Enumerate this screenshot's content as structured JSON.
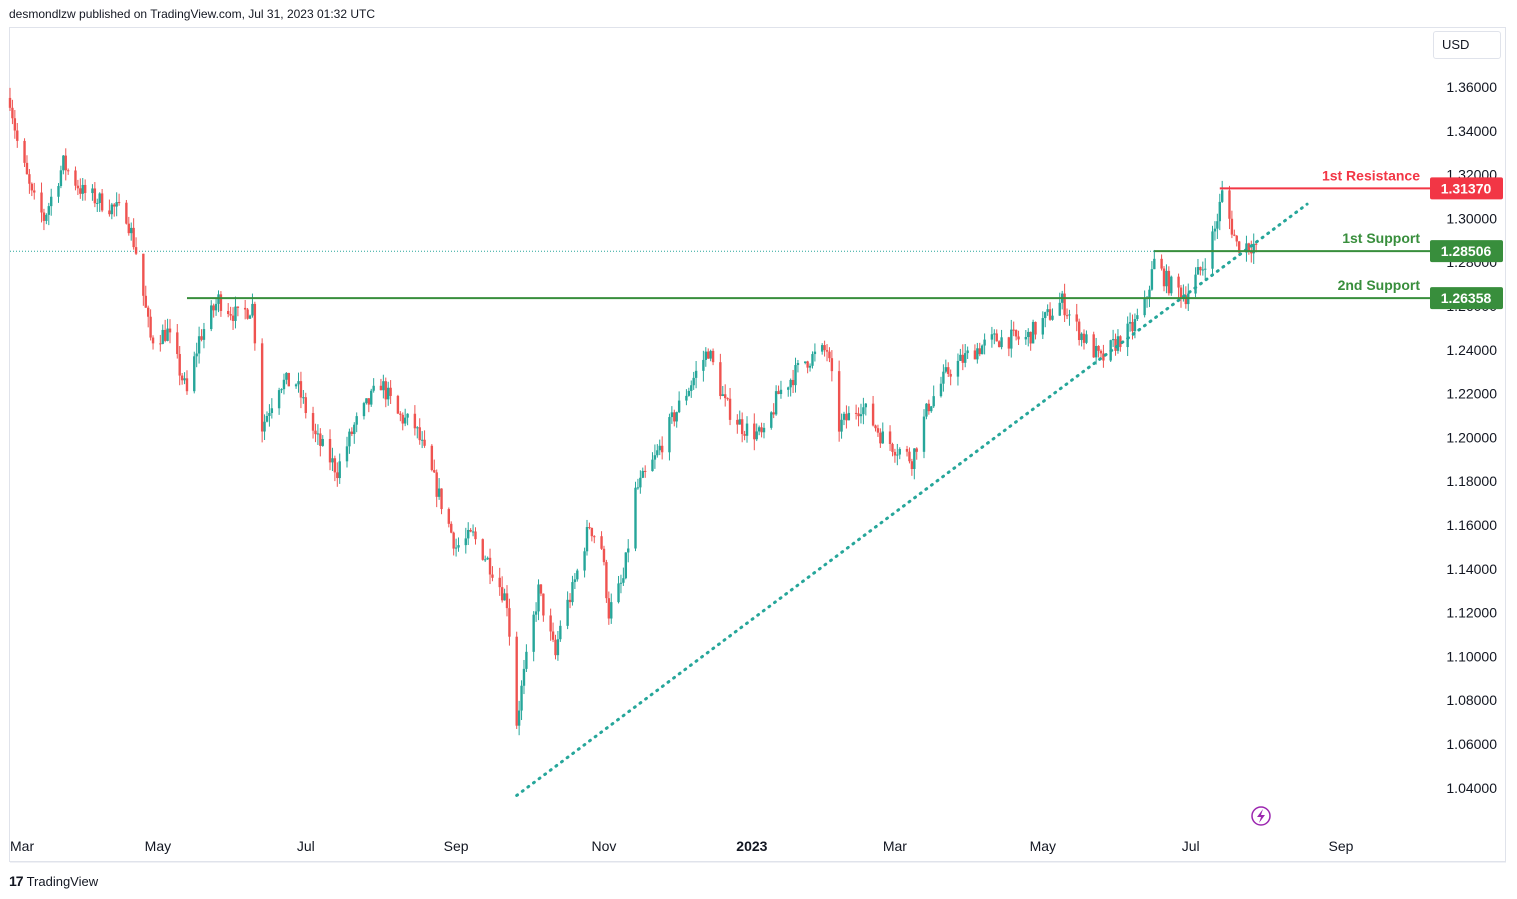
{
  "header": {
    "publisher_text": "desmondlzw published on TradingView.com, Jul 31, 2023 01:32 UTC"
  },
  "currency_button": {
    "label": "USD"
  },
  "footer": {
    "brand": "TradingView",
    "logo_glyph": "17"
  },
  "colors": {
    "up": "#26a69a",
    "down": "#ef5350",
    "resistance": "#f23645",
    "support": "#388e3c",
    "trend": "#26a69a",
    "last_price_line": "#26a69a",
    "lightning": "#9c27b0"
  },
  "chart_data": {
    "type": "candlestick",
    "title": "",
    "y_axis": {
      "position": "right",
      "ticks": [
        "1.36000",
        "1.34000",
        "1.32000",
        "1.30000",
        "1.28000",
        "1.26000",
        "1.24000",
        "1.22000",
        "1.20000",
        "1.18000",
        "1.16000",
        "1.14000",
        "1.12000",
        "1.10000",
        "1.08000",
        "1.06000",
        "1.04000"
      ],
      "range": [
        1.0285,
        1.3765
      ]
    },
    "x_axis": {
      "ticks": [
        "Mar",
        "May",
        "Jul",
        "Sep",
        "Nov",
        "2023",
        "Mar",
        "May",
        "Jul",
        "Sep"
      ],
      "tick_dates": [
        "2022-03-01",
        "2022-05-01",
        "2022-07-01",
        "2022-09-01",
        "2022-11-01",
        "2023-01-01",
        "2023-03-01",
        "2023-05-01",
        "2023-07-01",
        "2023-09-01"
      ],
      "range": [
        "2022-03-01",
        "2023-09-01"
      ]
    },
    "levels": [
      {
        "label": "1st Resistance",
        "value": "1.31370",
        "kind": "resistance",
        "start": "2023-07-13"
      },
      {
        "label": "1st Support",
        "value": "1.28506",
        "kind": "support",
        "start": "2023-06-16"
      },
      {
        "label": "2nd Support",
        "value": "1.26358",
        "kind": "support",
        "start": "2022-05-13"
      }
    ],
    "trendline": {
      "style": "dotted",
      "from": {
        "date": "2022-09-26",
        "value": 1.0365
      },
      "to": {
        "date": "2023-08-18",
        "value": 1.3065
      }
    },
    "last_price": 1.285,
    "price_anchors": [
      [
        "2022-03-01",
        1.355
      ],
      [
        "2022-03-04",
        1.335
      ],
      [
        "2022-03-10",
        1.31
      ],
      [
        "2022-03-15",
        1.3
      ],
      [
        "2022-03-23",
        1.325
      ],
      [
        "2022-03-31",
        1.312
      ],
      [
        "2022-04-07",
        1.308
      ],
      [
        "2022-04-14",
        1.304
      ],
      [
        "2022-04-18",
        1.302
      ],
      [
        "2022-04-22",
        1.285
      ],
      [
        "2022-04-26",
        1.258
      ],
      [
        "2022-04-28",
        1.245
      ],
      [
        "2022-05-05",
        1.248
      ],
      [
        "2022-05-13",
        1.22
      ],
      [
        "2022-05-18",
        1.245
      ],
      [
        "2022-05-26",
        1.263
      ],
      [
        "2022-06-03",
        1.255
      ],
      [
        "2022-06-09",
        1.26
      ],
      [
        "2022-06-13",
        1.205
      ],
      [
        "2022-06-20",
        1.225
      ],
      [
        "2022-06-27",
        1.225
      ],
      [
        "2022-07-05",
        1.2
      ],
      [
        "2022-07-14",
        1.185
      ],
      [
        "2022-07-21",
        1.205
      ],
      [
        "2022-08-01",
        1.225
      ],
      [
        "2022-08-08",
        1.21
      ],
      [
        "2022-08-15",
        1.205
      ],
      [
        "2022-08-23",
        1.18
      ],
      [
        "2022-09-01",
        1.15
      ],
      [
        "2022-09-08",
        1.155
      ],
      [
        "2022-09-16",
        1.14
      ],
      [
        "2022-09-22",
        1.125
      ],
      [
        "2022-09-26",
        1.07
      ],
      [
        "2022-09-28",
        1.085
      ],
      [
        "2022-10-05",
        1.13
      ],
      [
        "2022-10-12",
        1.1
      ],
      [
        "2022-10-14",
        1.115
      ],
      [
        "2022-10-19",
        1.13
      ],
      [
        "2022-10-26",
        1.16
      ],
      [
        "2022-10-31",
        1.15
      ],
      [
        "2022-11-03",
        1.12
      ],
      [
        "2022-11-09",
        1.135
      ],
      [
        "2022-11-14",
        1.175
      ],
      [
        "2022-11-22",
        1.19
      ],
      [
        "2022-11-30",
        1.21
      ],
      [
        "2022-12-07",
        1.225
      ],
      [
        "2022-12-14",
        1.24
      ],
      [
        "2022-12-21",
        1.215
      ],
      [
        "2022-12-28",
        1.205
      ],
      [
        "2023-01-06",
        1.2
      ],
      [
        "2023-01-12",
        1.22
      ],
      [
        "2023-01-23",
        1.235
      ],
      [
        "2023-02-01",
        1.24
      ],
      [
        "2023-02-06",
        1.205
      ],
      [
        "2023-02-15",
        1.215
      ],
      [
        "2023-02-24",
        1.2
      ],
      [
        "2023-03-02",
        1.195
      ],
      [
        "2023-03-08",
        1.19
      ],
      [
        "2023-03-15",
        1.215
      ],
      [
        "2023-03-23",
        1.23
      ],
      [
        "2023-04-03",
        1.24
      ],
      [
        "2023-04-12",
        1.245
      ],
      [
        "2023-04-24",
        1.245
      ],
      [
        "2023-05-09",
        1.262
      ],
      [
        "2023-05-15",
        1.25
      ],
      [
        "2023-05-25",
        1.235
      ],
      [
        "2023-05-31",
        1.243
      ],
      [
        "2023-06-07",
        1.25
      ],
      [
        "2023-06-12",
        1.26
      ],
      [
        "2023-06-16",
        1.28
      ],
      [
        "2023-06-22",
        1.27
      ],
      [
        "2023-06-29",
        1.265
      ],
      [
        "2023-07-06",
        1.278
      ],
      [
        "2023-07-11",
        1.295
      ],
      [
        "2023-07-14",
        1.311
      ],
      [
        "2023-07-20",
        1.288
      ],
      [
        "2023-07-27",
        1.288
      ],
      [
        "2023-07-28",
        1.285
      ]
    ]
  }
}
